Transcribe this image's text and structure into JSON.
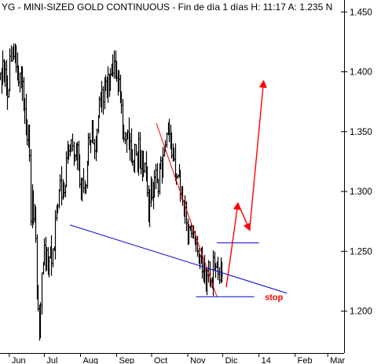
{
  "header": {
    "title": "YG - MINI-SIZED GOLD CONTINUOUS - Fin de día 1 días H: 11:17 A: 1.235 N"
  },
  "chart_data": {
    "type": "bar",
    "subtype": "ohlc",
    "title": "YG - MINI-SIZED GOLD CONTINUOUS - Fin de día 1 días H: 11:17 A: 1.235 N",
    "xlabel": "",
    "ylabel": "",
    "ylim": [
      1.165,
      1.46
    ],
    "y_ticks": [
      1.2,
      1.25,
      1.3,
      1.35,
      1.4,
      1.45
    ],
    "y_tick_labels": [
      "1.200",
      "1.250",
      "1.300",
      "1.350",
      "1.400",
      "1.450"
    ],
    "x_ticks": [
      {
        "label": "Jun",
        "day": 8
      },
      {
        "label": "Jul",
        "day": 38
      },
      {
        "label": "Aug",
        "day": 69
      },
      {
        "label": "Sep",
        "day": 100
      },
      {
        "label": "Oct",
        "day": 130
      },
      {
        "label": "Nov",
        "day": 161
      },
      {
        "label": "Dic",
        "day": 191
      },
      {
        "label": "14",
        "day": 222
      },
      {
        "label": "Feb",
        "day": 253
      },
      {
        "label": "Mar",
        "day": 281
      }
    ],
    "grid": false,
    "colors": {
      "bars": "#000000",
      "neckline": "#0000cc",
      "projection": "#ff0000",
      "stop": "#ff0000",
      "target": "#0000cc"
    },
    "close_series": [
      1.399,
      1.39,
      1.409,
      1.394,
      1.402,
      1.388,
      1.379,
      1.385,
      1.413,
      1.409,
      1.418,
      1.413,
      1.417,
      1.404,
      1.398,
      1.391,
      1.399,
      1.387,
      1.392,
      1.376,
      1.369,
      1.357,
      1.343,
      1.348,
      1.33,
      1.275,
      1.299,
      1.277,
      1.287,
      1.261,
      1.213,
      1.202,
      1.182,
      1.205,
      1.232,
      1.241,
      1.255,
      1.241,
      1.251,
      1.237,
      1.245,
      1.253,
      1.24,
      1.252,
      1.252,
      1.278,
      1.283,
      1.288,
      1.301,
      1.309,
      1.295,
      1.306,
      1.299,
      1.304,
      1.328,
      1.338,
      1.334,
      1.335,
      1.343,
      1.338,
      1.328,
      1.33,
      1.328,
      1.339,
      1.321,
      1.306,
      1.296,
      1.31,
      1.303,
      1.299,
      1.305,
      1.324,
      1.345,
      1.341,
      1.342,
      1.353,
      1.34,
      1.334,
      1.34,
      1.351,
      1.362,
      1.377,
      1.375,
      1.385,
      1.375,
      1.387,
      1.392,
      1.38,
      1.398,
      1.388,
      1.398,
      1.402,
      1.399,
      1.409,
      1.4,
      1.395,
      1.386,
      1.394,
      1.379,
      1.372,
      1.351,
      1.344,
      1.343,
      1.348,
      1.35,
      1.336,
      1.342,
      1.335,
      1.325,
      1.318,
      1.339,
      1.331,
      1.323,
      1.344,
      1.329,
      1.319,
      1.329,
      1.317,
      1.323,
      1.315,
      1.299,
      1.275,
      1.291,
      1.304,
      1.295,
      1.304,
      1.312,
      1.318,
      1.309,
      1.3,
      1.32,
      1.326,
      1.317,
      1.33,
      1.334,
      1.339,
      1.348,
      1.355,
      1.348,
      1.342,
      1.33,
      1.336,
      1.327,
      1.311,
      1.312,
      1.313,
      1.316,
      1.298,
      1.303,
      1.292,
      1.283,
      1.29,
      1.274,
      1.258,
      1.27,
      1.271,
      1.265,
      1.263,
      1.266,
      1.259,
      1.257,
      1.25,
      1.24,
      1.246,
      1.248,
      1.233,
      1.24,
      1.234,
      1.222,
      1.23,
      1.241,
      1.226,
      1.226,
      1.222,
      1.245,
      1.238,
      1.237,
      1.241,
      1.231,
      1.226,
      1.238,
      1.23
    ],
    "annotations": [
      {
        "type": "neckline",
        "from": {
          "day": 60,
          "value": 1.272
        },
        "to": {
          "day": 246,
          "value": 1.215
        }
      },
      {
        "type": "trendline",
        "from": {
          "day": 134,
          "value": 1.357
        },
        "to": {
          "day": 186,
          "value": 1.212
        }
      },
      {
        "type": "support",
        "from": {
          "day": 168,
          "value": 1.212
        },
        "to": {
          "day": 218,
          "value": 1.212
        }
      },
      {
        "type": "resistance",
        "from": {
          "day": 186,
          "value": 1.257
        },
        "to": {
          "day": 222,
          "value": 1.257
        }
      },
      {
        "type": "projection",
        "points": [
          {
            "day": 194,
            "value": 1.22
          },
          {
            "day": 204,
            "value": 1.29
          },
          {
            "day": 214,
            "value": 1.268
          },
          {
            "day": 226,
            "value": 1.392
          }
        ]
      },
      {
        "type": "label",
        "text": "stop",
        "at": {
          "day": 227,
          "value": 1.212
        }
      }
    ]
  }
}
